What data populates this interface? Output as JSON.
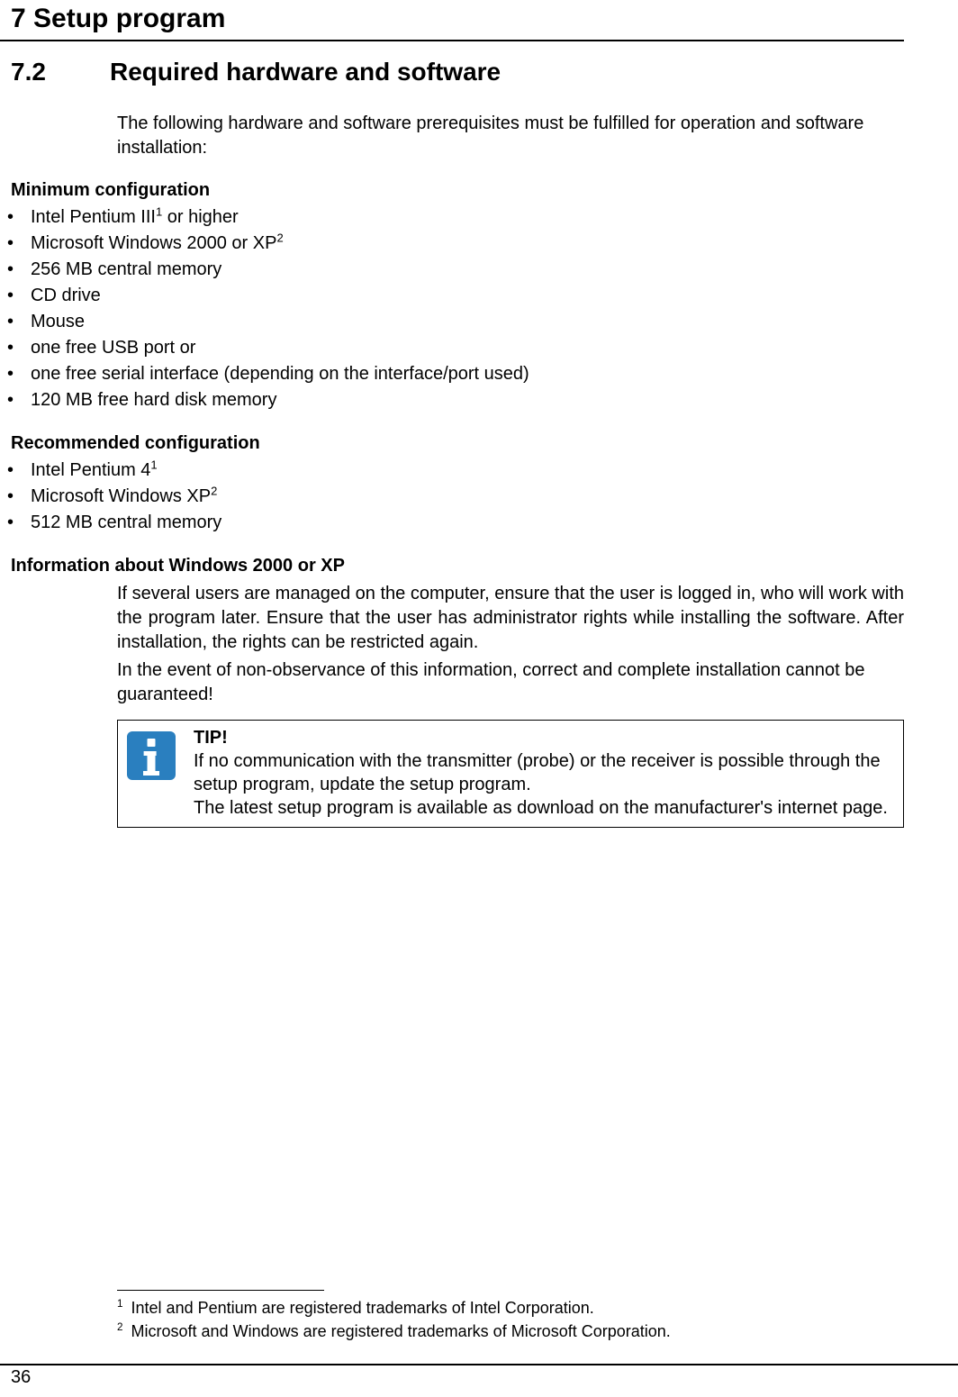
{
  "chapter_title": "7 Setup program",
  "section": {
    "num": "7.2",
    "title": "Required hardware and software"
  },
  "intro": "The following hardware and software prerequisites must be fulfilled for operation and software installation:",
  "min_heading": "Minimum configuration",
  "min_items": {
    "i0a": "Intel Pentium III",
    "i0b": " or higher",
    "i1a": "Microsoft Windows 2000 or XP",
    "i2": "256 MB central memory",
    "i3": "CD drive",
    "i4": "Mouse",
    "i5": "one free USB port or",
    "i6": "one free serial interface (depending on the interface/port used)",
    "i7": "120 MB free hard disk memory"
  },
  "rec_heading": "Recommended configuration",
  "rec_items": {
    "r0a": "Intel Pentium 4",
    "r1a": "Microsoft Windows XP",
    "r2": "512 MB central memory"
  },
  "info_heading": "Information about Windows 2000 or XP",
  "info_p1": "If several users are managed on the computer, ensure that the user is logged in, who will work with the program later. Ensure that the user has administrator rights while installing the soft­ware. After installation, the rights can be restricted again.",
  "info_p2": "In the event of non-observance of this information, correct and complete installation cannot be guaranteed!",
  "tip": {
    "label": "TIP!",
    "line1": "If no communication with the transmitter (probe) or the receiver is possible through the setup program, update the setup program.",
    "line2": "The latest setup program is available as download on the manufacturer's internet page."
  },
  "footnotes": {
    "f1": "Intel and Pentium are registered trademarks of Intel Corporation.",
    "f2": "Microsoft and Windows are registered trademarks of Microsoft Corporation."
  },
  "sup": {
    "one": "1",
    "two": "2"
  },
  "page_number": "36"
}
